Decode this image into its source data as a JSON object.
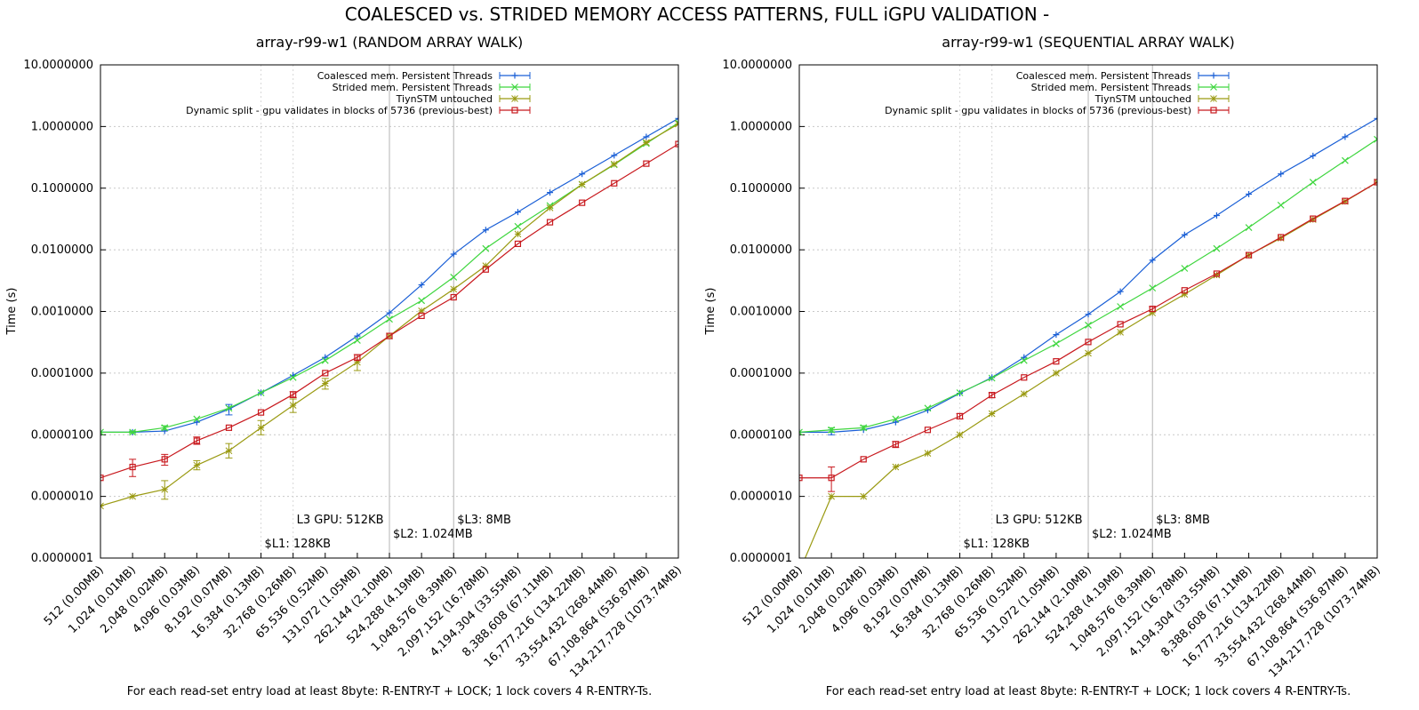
{
  "figure_title": "COALESCED vs. STRIDED MEMORY ACCESS PATTERNS, FULL iGPU VALIDATION -",
  "chart_data": [
    {
      "type": "line",
      "title": "array-r99-w1 (RANDOM ARRAY WALK)",
      "xlabel": "For each read-set entry load at least 8byte: R-ENTRY-T + LOCK; 1 lock covers 4 R-ENTRY-Ts.",
      "ylabel": "Time (s)",
      "y_scale": "log",
      "ylim": [
        1e-07,
        10
      ],
      "grid": true,
      "legend_position": "top-right",
      "y_ticks": [
        "0.0000001",
        "0.0000010",
        "0.0000100",
        "0.0001000",
        "0.0010000",
        "0.0100000",
        "0.1000000",
        "1.0000000",
        "10.0000000"
      ],
      "categories": [
        "512 (0.00MB)",
        "1,024 (0.01MB)",
        "2,048 (0.02MB)",
        "4,096 (0.03MB)",
        "8,192 (0.07MB)",
        "16,384 (0.13MB)",
        "32,768 (0.26MB)",
        "65,536 (0.52MB)",
        "131,072 (1.05MB)",
        "262,144 (2.10MB)",
        "524,288 (4.19MB)",
        "1,048,576 (8.39MB)",
        "2,097,152 (16.78MB)",
        "4,194,304 (33.55MB)",
        "8,388,608 (67.11MB)",
        "16,777,216 (134.22MB)",
        "33,554,432 (268.44MB)",
        "67,108,864 (536.87MB)",
        "134,217,728 (1073.74MB)"
      ],
      "annotations": [
        {
          "text": "$L1: 128KB",
          "x_index": 5
        },
        {
          "text": "L3 GPU: 512KB",
          "x_index": 6
        },
        {
          "text": "$L2: 1.024MB",
          "x_index": 9
        },
        {
          "text": "$L3: 8MB",
          "x_index": 11
        }
      ],
      "series": [
        {
          "name": "Coalesced mem. Persistent Threads",
          "color": "#1a5fd6",
          "marker": "plus",
          "values": [
            1.1e-05,
            1.1e-05,
            1.15e-05,
            1.6e-05,
            2.6e-05,
            4.8e-05,
            9.2e-05,
            0.00018,
            0.0004,
            0.00095,
            0.0027,
            0.0085,
            0.021,
            0.041,
            0.085,
            0.17,
            0.34,
            0.68,
            1.35
          ],
          "err_lo": [
            1.1e-05,
            1.1e-05,
            1.15e-05,
            1.6e-05,
            2.1e-05,
            4.8e-05,
            9.2e-05,
            0.00018,
            0.0004,
            0.00095,
            0.0027,
            0.0085,
            0.021,
            0.041,
            0.085,
            0.17,
            0.34,
            0.68,
            1.35
          ],
          "err_hi": [
            1.1e-05,
            1.1e-05,
            1.15e-05,
            1.6e-05,
            3.1e-05,
            4.8e-05,
            9.2e-05,
            0.00018,
            0.0004,
            0.00095,
            0.0027,
            0.0085,
            0.021,
            0.041,
            0.085,
            0.17,
            0.34,
            0.68,
            1.35
          ]
        },
        {
          "name": "Strided mem. Persistent Threads",
          "color": "#3fd63f",
          "marker": "cross",
          "values": [
            1.1e-05,
            1.1e-05,
            1.3e-05,
            1.8e-05,
            2.7e-05,
            4.8e-05,
            8.5e-05,
            0.00016,
            0.00034,
            0.00075,
            0.0015,
            0.0036,
            0.0105,
            0.024,
            0.052,
            0.115,
            0.24,
            0.53,
            1.15
          ],
          "err_lo": [
            1.1e-05,
            1.05e-05,
            1.2e-05,
            1.8e-05,
            2.7e-05,
            4.8e-05,
            8.5e-05,
            0.00016,
            0.00034,
            0.00075,
            0.0015,
            0.0036,
            0.0105,
            0.024,
            0.052,
            0.115,
            0.24,
            0.53,
            1.15
          ],
          "err_hi": [
            1.1e-05,
            1.15e-05,
            1.4e-05,
            1.8e-05,
            2.7e-05,
            4.8e-05,
            8.5e-05,
            0.00016,
            0.00034,
            0.00075,
            0.0015,
            0.0036,
            0.0105,
            0.024,
            0.052,
            0.115,
            0.24,
            0.53,
            1.15
          ]
        },
        {
          "name": "TiynSTM untouched",
          "color": "#9a9a12",
          "marker": "star",
          "values": [
            7e-07,
            1e-06,
            1.3e-06,
            3.2e-06,
            5.5e-06,
            1.3e-05,
            3e-05,
            6.8e-05,
            0.00015,
            0.0004,
            0.00102,
            0.0023,
            0.0055,
            0.018,
            0.048,
            0.115,
            0.245,
            0.55,
            1.1
          ],
          "err_lo": [
            7e-07,
            1e-06,
            9e-07,
            2.7e-06,
            4.2e-06,
            1e-05,
            2.3e-05,
            5.5e-05,
            0.00011,
            0.0004,
            0.00102,
            0.0023,
            0.0055,
            0.018,
            0.048,
            0.115,
            0.245,
            0.55,
            1.1
          ],
          "err_hi": [
            7e-07,
            1e-06,
            1.8e-06,
            3.8e-06,
            7.2e-06,
            1.7e-05,
            3.8e-05,
            8.2e-05,
            0.0002,
            0.0004,
            0.00102,
            0.0023,
            0.0055,
            0.018,
            0.048,
            0.115,
            0.245,
            0.55,
            1.1
          ]
        },
        {
          "name": "Dynamic split - gpu validates in blocks of 5736 (previous-best)",
          "color": "#c8191e",
          "marker": "square",
          "values": [
            2e-06,
            3e-06,
            4e-06,
            8e-06,
            1.3e-05,
            2.3e-05,
            4.5e-05,
            0.0001,
            0.00018,
            0.0004,
            0.00085,
            0.0017,
            0.0048,
            0.0125,
            0.028,
            0.058,
            0.12,
            0.25,
            0.52
          ],
          "err_lo": [
            2e-06,
            2.1e-06,
            3.2e-06,
            7e-06,
            1.3e-05,
            2.3e-05,
            4e-05,
            0.0001,
            0.00016,
            0.0004,
            0.00085,
            0.0017,
            0.0048,
            0.0125,
            0.028,
            0.058,
            0.12,
            0.25,
            0.52
          ],
          "err_hi": [
            2e-06,
            4e-06,
            4.8e-06,
            9.2e-06,
            1.3e-05,
            2.3e-05,
            5e-05,
            0.0001,
            0.0002,
            0.0004,
            0.00085,
            0.0017,
            0.0048,
            0.0125,
            0.028,
            0.058,
            0.12,
            0.25,
            0.52
          ]
        }
      ]
    },
    {
      "type": "line",
      "title": "array-r99-w1 (SEQUENTIAL ARRAY WALK)",
      "xlabel": "For each read-set entry load at least 8byte: R-ENTRY-T + LOCK; 1 lock covers 4 R-ENTRY-Ts.",
      "ylabel": "Time (s)",
      "y_scale": "log",
      "ylim": [
        1e-07,
        10
      ],
      "grid": true,
      "legend_position": "top-right",
      "y_ticks": [
        "0.0000001",
        "0.0000010",
        "0.0000100",
        "0.0001000",
        "0.0010000",
        "0.0100000",
        "0.1000000",
        "1.0000000",
        "10.0000000"
      ],
      "categories": [
        "512 (0.00MB)",
        "1,024 (0.01MB)",
        "2,048 (0.02MB)",
        "4,096 (0.03MB)",
        "8,192 (0.07MB)",
        "16,384 (0.13MB)",
        "32,768 (0.26MB)",
        "65,536 (0.52MB)",
        "131,072 (1.05MB)",
        "262,144 (2.10MB)",
        "524,288 (4.19MB)",
        "1,048,576 (8.39MB)",
        "2,097,152 (16.78MB)",
        "4,194,304 (33.55MB)",
        "8,388,608 (67.11MB)",
        "16,777,216 (134.22MB)",
        "33,554,432 (268.44MB)",
        "67,108,864 (536.87MB)",
        "134,217,728 (1073.74MB)"
      ],
      "annotations": [
        {
          "text": "$L1: 128KB",
          "x_index": 5
        },
        {
          "text": "L3 GPU: 512KB",
          "x_index": 6
        },
        {
          "text": "$L2: 1.024MB",
          "x_index": 9
        },
        {
          "text": "$L3: 8MB",
          "x_index": 11
        }
      ],
      "series": [
        {
          "name": "Coalesced mem. Persistent Threads",
          "color": "#1a5fd6",
          "marker": "plus",
          "values": [
            1.1e-05,
            1.1e-05,
            1.2e-05,
            1.6e-05,
            2.5e-05,
            4.7e-05,
            8.5e-05,
            0.00018,
            0.00042,
            0.0009,
            0.0021,
            0.0068,
            0.0175,
            0.036,
            0.08,
            0.17,
            0.335,
            0.68,
            1.35
          ],
          "err_lo": [
            1.1e-05,
            1e-05,
            1.2e-05,
            1.6e-05,
            2.5e-05,
            4.7e-05,
            8.5e-05,
            0.00018,
            0.00042,
            0.0009,
            0.0021,
            0.0068,
            0.0175,
            0.036,
            0.08,
            0.17,
            0.335,
            0.68,
            1.35
          ],
          "err_hi": [
            1.1e-05,
            1.2e-05,
            1.2e-05,
            1.6e-05,
            2.5e-05,
            4.7e-05,
            8.5e-05,
            0.00018,
            0.00042,
            0.0009,
            0.0021,
            0.0068,
            0.0175,
            0.036,
            0.08,
            0.17,
            0.335,
            0.68,
            1.35
          ]
        },
        {
          "name": "Strided mem. Persistent Threads",
          "color": "#3fd63f",
          "marker": "cross",
          "values": [
            1.1e-05,
            1.2e-05,
            1.3e-05,
            1.8e-05,
            2.7e-05,
            4.8e-05,
            8.3e-05,
            0.00016,
            0.0003,
            0.0006,
            0.0012,
            0.0024,
            0.005,
            0.0105,
            0.023,
            0.053,
            0.125,
            0.28,
            0.62
          ],
          "err_lo": [
            1.1e-05,
            1.1e-05,
            1.2e-05,
            1.8e-05,
            2.7e-05,
            4.8e-05,
            8.3e-05,
            0.00016,
            0.0003,
            0.0006,
            0.0012,
            0.0024,
            0.005,
            0.0105,
            0.023,
            0.053,
            0.125,
            0.28,
            0.62
          ],
          "err_hi": [
            1.1e-05,
            1.3e-05,
            1.4e-05,
            1.8e-05,
            2.7e-05,
            4.8e-05,
            8.3e-05,
            0.00016,
            0.0003,
            0.0006,
            0.0012,
            0.0024,
            0.005,
            0.0105,
            0.023,
            0.053,
            0.125,
            0.28,
            0.62
          ]
        },
        {
          "name": "TiynSTM untouched",
          "color": "#9a9a12",
          "marker": "star",
          "values": [
            6e-08,
            1e-06,
            1e-06,
            3e-06,
            5e-06,
            1e-05,
            2.2e-05,
            4.6e-05,
            0.0001,
            0.00021,
            0.00046,
            0.00095,
            0.0019,
            0.0039,
            0.0082,
            0.0155,
            0.031,
            0.061,
            0.125
          ],
          "err_lo": [
            6e-08,
            1e-06,
            1e-06,
            3e-06,
            5e-06,
            1e-05,
            2.2e-05,
            4.6e-05,
            0.0001,
            0.00021,
            0.00046,
            0.00095,
            0.0019,
            0.0039,
            0.0082,
            0.0155,
            0.031,
            0.061,
            0.125
          ],
          "err_hi": [
            6e-08,
            1e-06,
            1e-06,
            3e-06,
            5e-06,
            1e-05,
            2.2e-05,
            4.6e-05,
            0.0001,
            0.00021,
            0.00046,
            0.00095,
            0.0019,
            0.0039,
            0.0082,
            0.0155,
            0.031,
            0.061,
            0.125
          ]
        },
        {
          "name": "Dynamic split - gpu validates in blocks of 5736 (previous-best)",
          "color": "#c8191e",
          "marker": "square",
          "values": [
            2e-06,
            2e-06,
            4e-06,
            7e-06,
            1.2e-05,
            2e-05,
            4.4e-05,
            8.5e-05,
            0.000155,
            0.00032,
            0.00062,
            0.0011,
            0.0022,
            0.0041,
            0.0082,
            0.016,
            0.032,
            0.062,
            0.125
          ],
          "err_lo": [
            2e-06,
            1.2e-06,
            4e-06,
            6.2e-06,
            1.2e-05,
            1.8e-05,
            4e-05,
            8.5e-05,
            0.000155,
            0.00032,
            0.00062,
            0.001,
            0.0022,
            0.0041,
            0.0082,
            0.016,
            0.032,
            0.062,
            0.125
          ],
          "err_hi": [
            2e-06,
            3e-06,
            4e-06,
            7.8e-06,
            1.2e-05,
            2.2e-05,
            4.8e-05,
            8.5e-05,
            0.000155,
            0.00032,
            0.00062,
            0.0012,
            0.0022,
            0.0041,
            0.0082,
            0.016,
            0.032,
            0.062,
            0.125
          ]
        }
      ]
    }
  ]
}
